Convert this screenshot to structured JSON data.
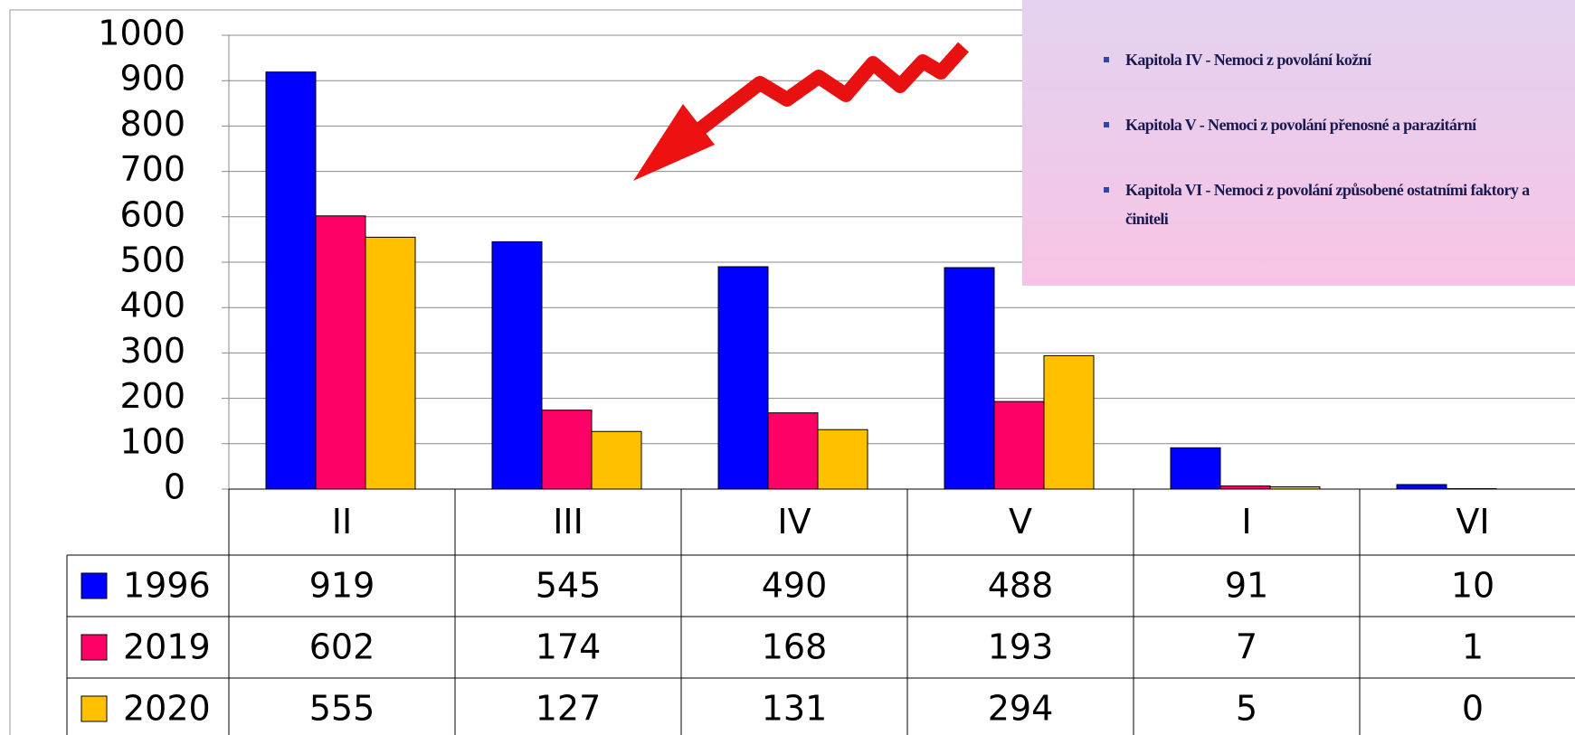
{
  "chart_data": {
    "type": "bar",
    "categories": [
      "II",
      "III",
      "IV",
      "V",
      "I",
      "VI"
    ],
    "series": [
      {
        "name": "1996",
        "color": "#0000ff",
        "values": [
          919,
          545,
          490,
          488,
          91,
          10
        ]
      },
      {
        "name": "2019",
        "color": "#ff0066",
        "values": [
          602,
          174,
          168,
          193,
          7,
          1
        ]
      },
      {
        "name": "2020",
        "color": "#ffc000",
        "values": [
          555,
          127,
          131,
          294,
          5,
          0
        ]
      }
    ],
    "ylim": [
      0,
      1000
    ],
    "yticks": [
      0,
      100,
      200,
      300,
      400,
      500,
      600,
      700,
      800,
      900,
      1000
    ],
    "grid": true
  },
  "overlay": {
    "items": [
      "Kapitola IV - Nemoci z povolání kožní",
      "Kapitola V - Nemoci  z povolání přenosné a parazitární",
      "Kapitola VI - Nemoci z povolání  způsobené ostatními faktory a činiteli"
    ]
  }
}
